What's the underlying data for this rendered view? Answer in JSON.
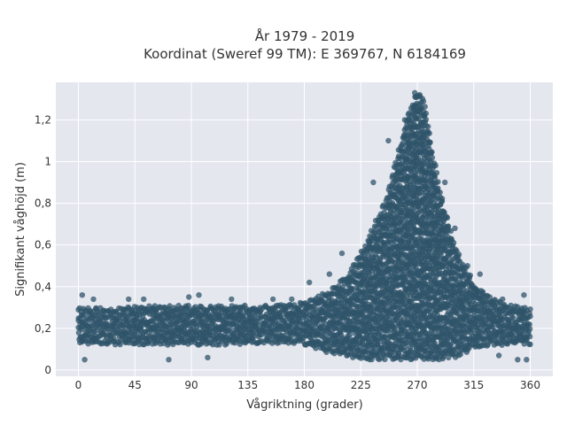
{
  "chart_data": {
    "type": "scatter",
    "title_line1": "År 1979 - 2019",
    "title_line2": "Koordinat (Sweref 99 TM): E 369767, N 6184169",
    "xlabel": "Vågriktning (grader)",
    "ylabel": "Signifikant våghöjd (m)",
    "xlim": [
      -18,
      378
    ],
    "ylim": [
      -0.03,
      1.38
    ],
    "x_ticks": [
      0,
      45,
      90,
      135,
      180,
      225,
      270,
      315,
      360
    ],
    "x_tick_labels": [
      "0",
      "45",
      "90",
      "135",
      "180",
      "225",
      "270",
      "315",
      "360"
    ],
    "y_ticks": [
      0,
      0.2,
      0.4,
      0.6,
      0.8,
      1,
      1.2
    ],
    "y_tick_labels": [
      "0",
      "0,2",
      "0,4",
      "0,6",
      "0,8",
      "1",
      "1,2"
    ],
    "grid": true,
    "marker_color": "#2f5469",
    "plot_bg": "#e5e7ef",
    "envelope": {
      "direction": [
        0,
        30,
        60,
        90,
        120,
        150,
        180,
        200,
        215,
        230,
        245,
        255,
        262,
        268,
        272,
        276,
        282,
        290,
        300,
        315,
        330,
        345,
        360
      ],
      "height_low": [
        0.12,
        0.12,
        0.12,
        0.12,
        0.12,
        0.13,
        0.12,
        0.08,
        0.06,
        0.05,
        0.05,
        0.05,
        0.05,
        0.05,
        0.05,
        0.05,
        0.05,
        0.05,
        0.06,
        0.1,
        0.12,
        0.12,
        0.12
      ],
      "height_high": [
        0.3,
        0.3,
        0.31,
        0.31,
        0.31,
        0.31,
        0.33,
        0.38,
        0.46,
        0.62,
        0.82,
        1.05,
        1.22,
        1.32,
        1.33,
        1.28,
        1.05,
        0.82,
        0.6,
        0.42,
        0.35,
        0.31,
        0.3
      ]
    },
    "outliers": [
      {
        "x": 3,
        "y": 0.36
      },
      {
        "x": 5,
        "y": 0.05
      },
      {
        "x": 12,
        "y": 0.34
      },
      {
        "x": 40,
        "y": 0.34
      },
      {
        "x": 52,
        "y": 0.34
      },
      {
        "x": 72,
        "y": 0.05
      },
      {
        "x": 88,
        "y": 0.35
      },
      {
        "x": 96,
        "y": 0.36
      },
      {
        "x": 103,
        "y": 0.06
      },
      {
        "x": 122,
        "y": 0.34
      },
      {
        "x": 155,
        "y": 0.34
      },
      {
        "x": 170,
        "y": 0.34
      },
      {
        "x": 184,
        "y": 0.42
      },
      {
        "x": 200,
        "y": 0.46
      },
      {
        "x": 210,
        "y": 0.56
      },
      {
        "x": 235,
        "y": 0.9
      },
      {
        "x": 247,
        "y": 1.1
      },
      {
        "x": 260,
        "y": 1.2
      },
      {
        "x": 268,
        "y": 1.33
      },
      {
        "x": 272,
        "y": 1.32
      },
      {
        "x": 292,
        "y": 0.9
      },
      {
        "x": 300,
        "y": 0.68
      },
      {
        "x": 310,
        "y": 0.5
      },
      {
        "x": 320,
        "y": 0.46
      },
      {
        "x": 338,
        "y": 0.34
      },
      {
        "x": 350,
        "y": 0.05
      },
      {
        "x": 355,
        "y": 0.36
      },
      {
        "x": 357,
        "y": 0.05
      },
      {
        "x": 335,
        "y": 0.07
      }
    ]
  }
}
